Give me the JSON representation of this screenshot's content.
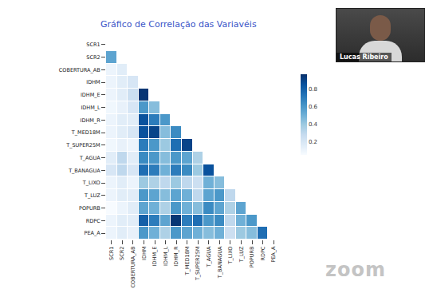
{
  "chart_data": {
    "type": "heatmap",
    "title": "Gráfico de Correlação das Variavéis",
    "categories": [
      "SCR1",
      "SCR2",
      "COBERTURA_AB",
      "IDHM",
      "IDHM_E",
      "IDHM_L",
      "IDHM_R",
      "T_MED18M",
      "T_SUPER25M",
      "T_AGUA",
      "T_BANAGUA",
      "T_LIXO",
      "T_LUZ",
      "POPURB",
      "RDPC",
      "PEA_A"
    ],
    "cells": [
      [
        null,
        null,
        null,
        null,
        null,
        null,
        null,
        null,
        null,
        null,
        null,
        null,
        null,
        null,
        null,
        null
      ],
      [
        0.55,
        null,
        null,
        null,
        null,
        null,
        null,
        null,
        null,
        null,
        null,
        null,
        null,
        null,
        null,
        null
      ],
      [
        0.1,
        0.15,
        null,
        null,
        null,
        null,
        null,
        null,
        null,
        null,
        null,
        null,
        null,
        null,
        null,
        null
      ],
      [
        0.1,
        0.15,
        0.2,
        null,
        null,
        null,
        null,
        null,
        null,
        null,
        null,
        null,
        null,
        null,
        null,
        null
      ],
      [
        0.1,
        0.15,
        0.25,
        0.95,
        null,
        null,
        null,
        null,
        null,
        null,
        null,
        null,
        null,
        null,
        null,
        null
      ],
      [
        0.08,
        0.12,
        0.2,
        0.6,
        0.45,
        null,
        null,
        null,
        null,
        null,
        null,
        null,
        null,
        null,
        null,
        null
      ],
      [
        0.1,
        0.15,
        0.15,
        0.85,
        0.7,
        0.6,
        null,
        null,
        null,
        null,
        null,
        null,
        null,
        null,
        null,
        null
      ],
      [
        0.1,
        0.15,
        0.2,
        0.85,
        0.9,
        0.45,
        0.65,
        null,
        null,
        null,
        null,
        null,
        null,
        null,
        null,
        null
      ],
      [
        0.08,
        0.12,
        0.1,
        0.7,
        0.6,
        0.4,
        0.75,
        0.9,
        null,
        null,
        null,
        null,
        null,
        null,
        null,
        null
      ],
      [
        0.15,
        0.3,
        0.15,
        0.65,
        0.6,
        0.45,
        0.6,
        0.55,
        0.35,
        null,
        null,
        null,
        null,
        null,
        null,
        null
      ],
      [
        0.2,
        0.3,
        0.2,
        0.75,
        0.7,
        0.5,
        0.7,
        0.65,
        0.4,
        0.85,
        null,
        null,
        null,
        null,
        null,
        null
      ],
      [
        0.1,
        0.15,
        0.1,
        0.4,
        0.35,
        0.3,
        0.4,
        0.3,
        0.25,
        0.5,
        0.45,
        null,
        null,
        null,
        null,
        null
      ],
      [
        0.1,
        0.15,
        0.15,
        0.6,
        0.55,
        0.45,
        0.55,
        0.5,
        0.3,
        0.55,
        0.6,
        0.3,
        null,
        null,
        null,
        null
      ],
      [
        0.05,
        0.1,
        0.15,
        0.55,
        0.5,
        0.35,
        0.6,
        0.5,
        0.45,
        0.65,
        0.55,
        0.35,
        0.55,
        null,
        null,
        null
      ],
      [
        0.1,
        0.15,
        0.15,
        0.8,
        0.7,
        0.55,
        0.95,
        0.7,
        0.75,
        0.6,
        0.65,
        0.3,
        0.5,
        0.6,
        null,
        null
      ],
      [
        0.1,
        0.15,
        0.12,
        0.6,
        0.5,
        0.35,
        0.6,
        0.55,
        0.5,
        0.45,
        0.5,
        0.25,
        0.4,
        0.45,
        0.75,
        null
      ]
    ],
    "color": "Blues",
    "zlim": [
      0.05,
      0.97
    ],
    "zticks": [
      0.2,
      0.4,
      0.6,
      0.8
    ],
    "grid": false
  },
  "screen": {
    "participant": "Lucas Ribeiro",
    "logo": "zoom"
  }
}
